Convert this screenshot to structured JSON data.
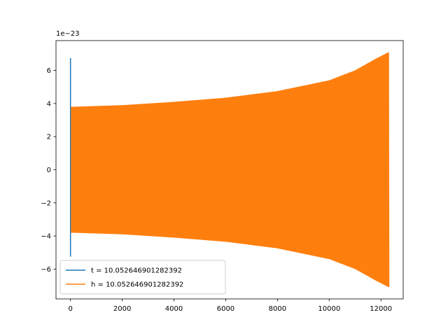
{
  "chart_data": {
    "type": "line",
    "title": "",
    "xlabel": "",
    "ylabel": "",
    "y_offset_label": "1e−23",
    "xlim": [
      -560,
      12860
    ],
    "ylim": [
      -7.8,
      7.8
    ],
    "x_ticks": [
      0,
      2000,
      4000,
      6000,
      8000,
      10000,
      12000
    ],
    "y_ticks": [
      -6,
      -4,
      -2,
      0,
      2,
      4,
      6
    ],
    "grid": false,
    "legend_position": "lower-left",
    "colors": {
      "t": "#1f77b4",
      "h": "#ff7f0e"
    },
    "series": [
      {
        "name": "t = 10.052646901282392",
        "color": "#1f77b4",
        "spike": {
          "x": 0,
          "ymin": -5.25,
          "ymax": 6.75
        }
      },
      {
        "name": "h = 10.052646901282392",
        "color": "#ff7f0e",
        "envelope": [
          {
            "x": 0,
            "upper": 3.8,
            "lower": -3.8
          },
          {
            "x": 2000,
            "upper": 3.9,
            "lower": -3.9
          },
          {
            "x": 4000,
            "upper": 4.1,
            "lower": -4.1
          },
          {
            "x": 6000,
            "upper": 4.35,
            "lower": -4.35
          },
          {
            "x": 8000,
            "upper": 4.75,
            "lower": -4.75
          },
          {
            "x": 10000,
            "upper": 5.4,
            "lower": -5.4
          },
          {
            "x": 11000,
            "upper": 6.0,
            "lower": -6.0
          },
          {
            "x": 11800,
            "upper": 6.7,
            "lower": -6.7
          },
          {
            "x": 12300,
            "upper": 7.1,
            "lower": -7.1
          }
        ]
      }
    ]
  }
}
